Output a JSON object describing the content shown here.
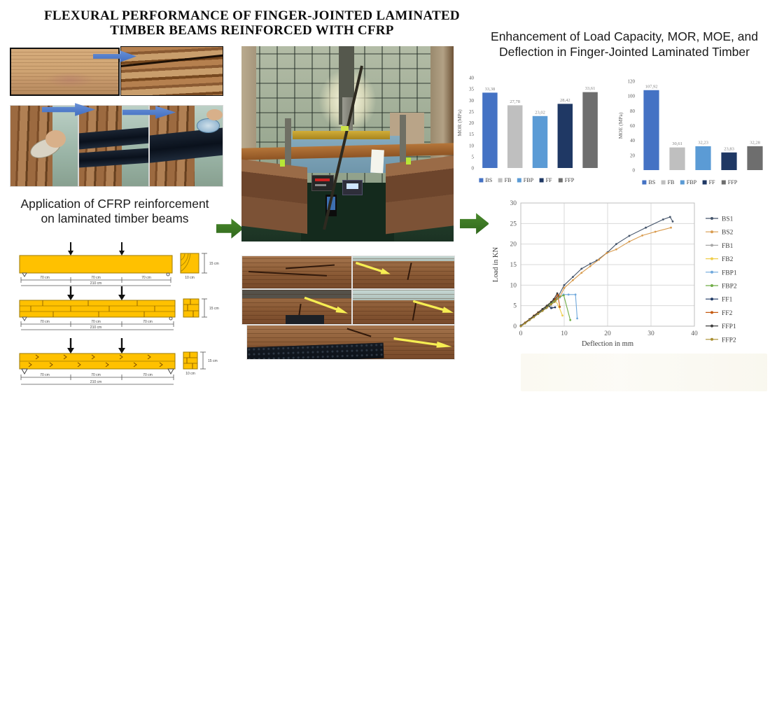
{
  "main_title": {
    "line1": "FLEXURAL PERFORMANCE OF FINGER-JOINTED LAMINATED",
    "line2": "TIMBER BEAMS REINFORCED WITH CFRP"
  },
  "left_column": {
    "caption": {
      "line1": "Application of CFRP reinforcement",
      "line2": "on laminated timber beams"
    },
    "diagram_dims": {
      "span1": "70 cm",
      "span2": "70 cm",
      "span3": "70 cm",
      "total": "210 cm",
      "section_width": "10 cm",
      "section_height": "15 cm"
    }
  },
  "right_column": {
    "title": "Enhancement of Load Capacity, MOR, MOE, and Deflection  in Finger-Jointed Laminated Timber"
  },
  "colors": {
    "accent_green_arrow": "#3f7d23",
    "accent_blue_arrow": "#4a7bd0",
    "bar_bs": "#4472C4",
    "bar_fb": "#BFBFBF",
    "bar_fbp": "#5B9BD5",
    "bar_ff": "#1F3864",
    "bar_ffp": "#6E6E6E"
  },
  "chart_data": [
    {
      "type": "bar",
      "name": "mor-bar-chart",
      "title": "",
      "xlabel": "",
      "ylabel": "MOR (MPa)",
      "categories": [
        "BS",
        "FB",
        "FBP",
        "FF",
        "FFP"
      ],
      "values": [
        33.38,
        27.78,
        23.02,
        28.42,
        33.61
      ],
      "value_labels": [
        "33,38",
        "27,78",
        "23,02",
        "28,42",
        "33,61"
      ],
      "colors": [
        "#4472C4",
        "#BFBFBF",
        "#5B9BD5",
        "#1F3864",
        "#6E6E6E"
      ],
      "ylim": [
        0,
        40
      ],
      "ytick": 5,
      "grid": false,
      "legend_position": "bottom"
    },
    {
      "type": "bar",
      "name": "moe-bar-chart",
      "title": "",
      "xlabel": "",
      "ylabel": "MOE (MPa)",
      "categories": [
        "BS",
        "FB",
        "FBP",
        "FF",
        "FFP"
      ],
      "values": [
        107.92,
        30.61,
        32.23,
        23.83,
        32.28
      ],
      "value_labels": [
        "107,92",
        "30,61",
        "32,23",
        "23,83",
        "32,28"
      ],
      "colors": [
        "#4472C4",
        "#BFBFBF",
        "#5B9BD5",
        "#1F3864",
        "#6E6E6E"
      ],
      "ylim": [
        0,
        120
      ],
      "ytick": 20,
      "grid": false,
      "legend_position": "bottom"
    },
    {
      "type": "line",
      "name": "load-deflection-chart",
      "title": "",
      "xlabel": "Deflection in mm",
      "ylabel": "Load in KN",
      "xlim": [
        0,
        40
      ],
      "ylim": [
        0,
        30
      ],
      "xtick": 10,
      "ytick": 5,
      "grid": true,
      "legend_position": "right",
      "series": [
        {
          "name": "BS1",
          "color": "#44546A",
          "points": [
            [
              0,
              0.2
            ],
            [
              1,
              0.9
            ],
            [
              2,
              1.7
            ],
            [
              3,
              2.5
            ],
            [
              4,
              3.3
            ],
            [
              5,
              4.1
            ],
            [
              6,
              4.9
            ],
            [
              6.5,
              5.3
            ],
            [
              7,
              5.8
            ],
            [
              7.5,
              6.2
            ],
            [
              8,
              6.7
            ],
            [
              8.7,
              7.4
            ],
            [
              10,
              10
            ],
            [
              12,
              12
            ],
            [
              14,
              14
            ],
            [
              16,
              15.2
            ],
            [
              17.5,
              16
            ],
            [
              20,
              18
            ],
            [
              22,
              20
            ],
            [
              25,
              22
            ],
            [
              28.8,
              24
            ],
            [
              32.8,
              26
            ],
            [
              34.4,
              26.6
            ],
            [
              35,
              25.5
            ]
          ]
        },
        {
          "name": "BS2",
          "color": "#D99C4F",
          "points": [
            [
              0,
              0
            ],
            [
              1,
              0.8
            ],
            [
              2,
              1.5
            ],
            [
              3,
              2.3
            ],
            [
              4,
              3.1
            ],
            [
              5,
              3.9
            ],
            [
              6,
              4.7
            ],
            [
              7,
              5.5
            ],
            [
              8,
              6.3
            ],
            [
              9,
              7.1
            ],
            [
              10,
              9.3
            ],
            [
              12,
              11.2
            ],
            [
              14,
              13
            ],
            [
              16,
              14.6
            ],
            [
              18,
              16.2
            ],
            [
              19.8,
              17.8
            ],
            [
              22,
              18.7
            ],
            [
              25,
              20.6
            ],
            [
              28,
              22.1
            ],
            [
              31,
              23
            ],
            [
              34.6,
              24
            ]
          ]
        },
        {
          "name": "FB1",
          "color": "#A6A6A6",
          "points": [
            [
              0,
              0
            ],
            [
              1,
              0.8
            ],
            [
              2,
              1.6
            ],
            [
              3,
              2.4
            ],
            [
              4,
              3.1
            ],
            [
              5,
              3.9
            ],
            [
              6,
              4.6
            ],
            [
              6.8,
              5.1
            ],
            [
              7.3,
              4.5
            ]
          ]
        },
        {
          "name": "FB2",
          "color": "#EFCE4A",
          "points": [
            [
              0,
              0
            ],
            [
              1,
              0.8
            ],
            [
              2,
              1.6
            ],
            [
              3,
              2.4
            ],
            [
              4,
              3.2
            ],
            [
              5,
              4.0
            ],
            [
              6,
              4.8
            ],
            [
              7,
              5.6
            ],
            [
              8,
              6.3
            ],
            [
              8.8,
              4.7
            ],
            [
              9.6,
              2.6
            ]
          ]
        },
        {
          "name": "FBP1",
          "color": "#6FA8DC",
          "points": [
            [
              0,
              0
            ],
            [
              1,
              0.8
            ],
            [
              2,
              1.6
            ],
            [
              3,
              2.4
            ],
            [
              4,
              3.2
            ],
            [
              5,
              3.9
            ],
            [
              6,
              4.7
            ],
            [
              7,
              5.5
            ],
            [
              8,
              6.2
            ],
            [
              9,
              7.0
            ],
            [
              9.8,
              7.7
            ],
            [
              11,
              7.7
            ],
            [
              12.6,
              7.7
            ],
            [
              13,
              1.9
            ]
          ]
        },
        {
          "name": "FBP2",
          "color": "#70AD47",
          "points": [
            [
              0,
              0
            ],
            [
              1,
              0.8
            ],
            [
              2,
              1.6
            ],
            [
              3,
              2.5
            ],
            [
              4,
              3.3
            ],
            [
              5,
              4.1
            ],
            [
              6,
              4.9
            ],
            [
              7,
              5.6
            ],
            [
              8,
              6.4
            ],
            [
              9,
              7.2
            ],
            [
              9.9,
              7.5
            ],
            [
              11.4,
              1.5
            ]
          ]
        },
        {
          "name": "FF1",
          "color": "#1F3864",
          "points": [
            [
              0,
              0
            ],
            [
              1,
              0.7
            ],
            [
              2,
              1.5
            ],
            [
              3,
              2.2
            ],
            [
              4,
              3.0
            ],
            [
              5,
              3.8
            ],
            [
              5.8,
              4.4
            ],
            [
              6.5,
              4.9
            ],
            [
              7,
              4.4
            ],
            [
              7.9,
              4.6
            ]
          ]
        },
        {
          "name": "FF2",
          "color": "#C55A11",
          "points": [
            [
              0,
              0
            ],
            [
              1,
              0.9
            ],
            [
              2,
              1.7
            ],
            [
              3,
              2.6
            ],
            [
              4,
              3.4
            ],
            [
              5,
              4.2
            ],
            [
              6,
              5.0
            ],
            [
              7,
              5.9
            ],
            [
              7.9,
              6.6
            ],
            [
              8.5,
              7.7
            ],
            [
              9,
              4.7
            ]
          ]
        },
        {
          "name": "FFP1",
          "color": "#3F3F3F",
          "points": [
            [
              0,
              0
            ],
            [
              1,
              0.8
            ],
            [
              2,
              1.7
            ],
            [
              3,
              2.5
            ],
            [
              4,
              3.3
            ],
            [
              5,
              4.2
            ],
            [
              6,
              5.0
            ],
            [
              7,
              5.9
            ],
            [
              7.6,
              6.6
            ],
            [
              8.4,
              8.0
            ]
          ]
        },
        {
          "name": "FFP2",
          "color": "#A98E2F",
          "points": [
            [
              0,
              0
            ],
            [
              1,
              0.7
            ],
            [
              2,
              1.5
            ],
            [
              3,
              2.2
            ],
            [
              4,
              3.0
            ],
            [
              5,
              3.7
            ],
            [
              6,
              4.5
            ],
            [
              7,
              5.3
            ],
            [
              7.8,
              5.9
            ],
            [
              9,
              7.2
            ]
          ]
        }
      ]
    }
  ]
}
